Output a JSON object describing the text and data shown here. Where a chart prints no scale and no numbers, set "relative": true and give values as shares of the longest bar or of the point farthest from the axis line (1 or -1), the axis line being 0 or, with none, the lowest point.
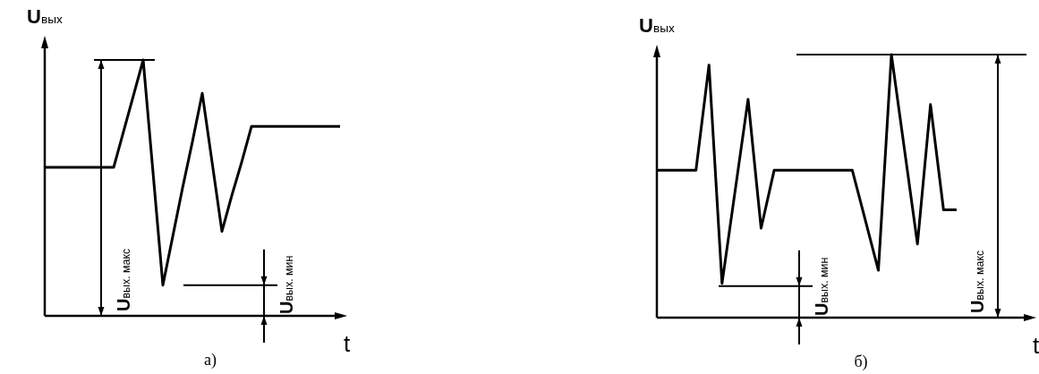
{
  "chart_data": [
    {
      "type": "line",
      "title": "а)",
      "xlabel": "t",
      "ylabel": "U$_{вых}$",
      "relative": true,
      "line_style": "solid",
      "categories": [
        null,
        null,
        null,
        null,
        null,
        null,
        null,
        null,
        null,
        null,
        null,
        null,
        null,
        null,
        null,
        null,
        null,
        null,
        null,
        null,
        null,
        null,
        null,
        null,
        null,
        null,
        null,
        null,
        null,
        null,
        null
      ],
      "series": [
        {
          "color": "#000000",
          "values": [
            0.58,
            0.58,
            0.58,
            0.58,
            0.58,
            0.58,
            0.58,
            0.58,
            0.72,
            0.86,
            1.0,
            0.56,
            0.12,
            0.31,
            0.5,
            0.68,
            0.87,
            0.6,
            0.33,
            0.47,
            0.6,
            0.74,
            0.74,
            0.74,
            0.74,
            0.74,
            0.74,
            0.74,
            0.74,
            0.74,
            0.74
          ]
        }
      ],
      "ref_lines": [
        {
          "axis": "y",
          "value": 1.0,
          "label": "U$_{вых. макс}$",
          "color": "#000000"
        },
        {
          "axis": "y",
          "value": 0.12,
          "label": "U$_{вых. мин}$",
          "color": "#000000"
        }
      ]
    },
    {
      "type": "line",
      "title": "б)",
      "xlabel": "t",
      "ylabel": "U$_{вых}$",
      "relative": true,
      "line_style": "solid",
      "categories": [
        null,
        null,
        null,
        null,
        null,
        null,
        null,
        null,
        null,
        null,
        null,
        null,
        null,
        null,
        null,
        null,
        null,
        null,
        null,
        null,
        null,
        null,
        null,
        null,
        null,
        null,
        null,
        null,
        null
      ],
      "series": [
        {
          "color": "#000000",
          "values": [
            0.56,
            0.56,
            0.56,
            0.56,
            0.96,
            0.13,
            0.48,
            0.83,
            0.34,
            0.56,
            0.56,
            0.56,
            0.56,
            0.56,
            0.56,
            0.56,
            0.37,
            0.18,
            1.0,
            0.64,
            0.28,
            0.81,
            0.41,
            0.41,
            null,
            null,
            null,
            null,
            null
          ]
        }
      ],
      "ref_lines": [
        {
          "axis": "y",
          "value": 1.0,
          "label": "U$_{вых. макс}$",
          "color": "#000000"
        },
        {
          "axis": "y",
          "value": 0.12,
          "label": "U$_{вых. мин}$",
          "color": "#000000"
        }
      ]
    }
  ]
}
